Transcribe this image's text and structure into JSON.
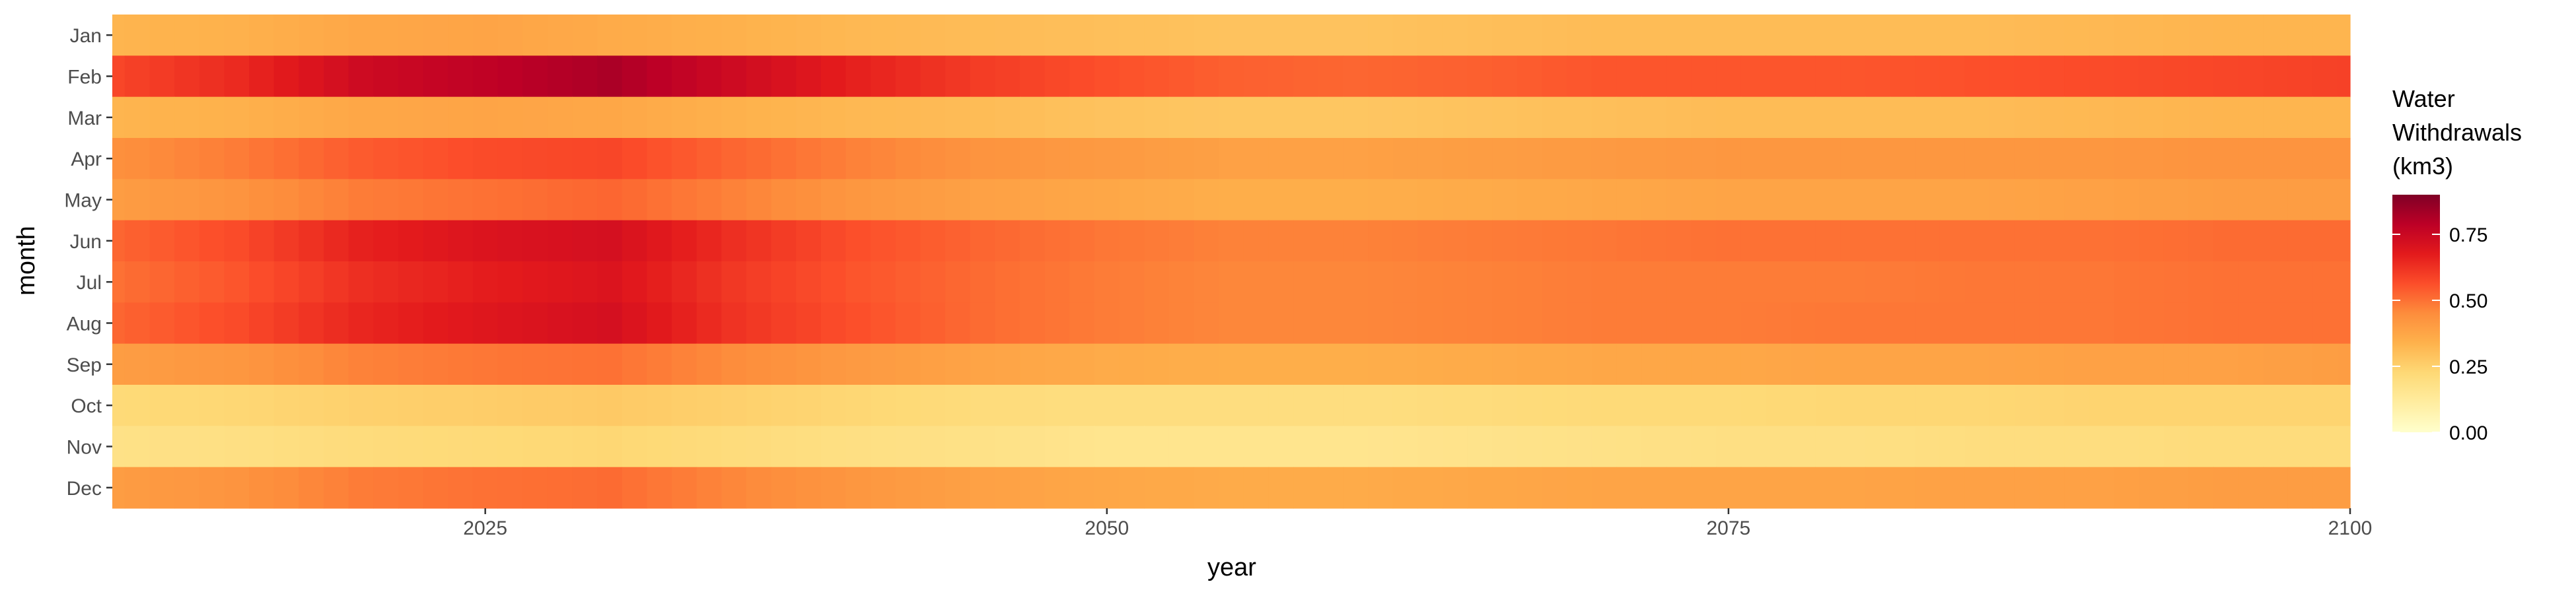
{
  "chart_data": {
    "type": "heatmap",
    "title": "",
    "xlabel": "year",
    "ylabel": "month",
    "x_range": [
      2010,
      2100
    ],
    "x_ticks": [
      "2025",
      "2050",
      "2075",
      "2100"
    ],
    "rows": [
      "Jan",
      "Feb",
      "Mar",
      "Apr",
      "May",
      "Jun",
      "Jul",
      "Aug",
      "Sep",
      "Oct",
      "Nov",
      "Dec"
    ],
    "years": [
      2010,
      2015,
      2020,
      2025,
      2030,
      2035,
      2040,
      2045,
      2050,
      2055,
      2060,
      2065,
      2070,
      2075,
      2080,
      2085,
      2090,
      2095,
      2100
    ],
    "values": [
      [
        0.33,
        0.34,
        0.37,
        0.38,
        0.36,
        0.34,
        0.32,
        0.31,
        0.3,
        0.29,
        0.29,
        0.3,
        0.31,
        0.31,
        0.31,
        0.31,
        0.32,
        0.33,
        0.33
      ],
      [
        0.58,
        0.64,
        0.74,
        0.78,
        0.82,
        0.74,
        0.66,
        0.6,
        0.56,
        0.53,
        0.52,
        0.53,
        0.55,
        0.55,
        0.55,
        0.56,
        0.57,
        0.58,
        0.59
      ],
      [
        0.33,
        0.34,
        0.37,
        0.38,
        0.37,
        0.34,
        0.32,
        0.31,
        0.29,
        0.28,
        0.28,
        0.29,
        0.3,
        0.31,
        0.31,
        0.31,
        0.32,
        0.33,
        0.33
      ],
      [
        0.44,
        0.48,
        0.54,
        0.57,
        0.58,
        0.52,
        0.47,
        0.43,
        0.41,
        0.39,
        0.39,
        0.4,
        0.41,
        0.42,
        0.42,
        0.42,
        0.42,
        0.43,
        0.43
      ],
      [
        0.4,
        0.43,
        0.48,
        0.5,
        0.52,
        0.47,
        0.42,
        0.39,
        0.37,
        0.35,
        0.35,
        0.36,
        0.37,
        0.38,
        0.38,
        0.38,
        0.39,
        0.4,
        0.4
      ],
      [
        0.52,
        0.57,
        0.66,
        0.7,
        0.72,
        0.63,
        0.56,
        0.52,
        0.49,
        0.47,
        0.47,
        0.48,
        0.49,
        0.5,
        0.5,
        0.5,
        0.5,
        0.51,
        0.51
      ],
      [
        0.5,
        0.55,
        0.63,
        0.67,
        0.7,
        0.61,
        0.55,
        0.51,
        0.48,
        0.46,
        0.46,
        0.47,
        0.48,
        0.48,
        0.48,
        0.49,
        0.49,
        0.5,
        0.5
      ],
      [
        0.52,
        0.57,
        0.65,
        0.69,
        0.72,
        0.62,
        0.56,
        0.51,
        0.48,
        0.46,
        0.46,
        0.47,
        0.48,
        0.48,
        0.49,
        0.49,
        0.49,
        0.5,
        0.5
      ],
      [
        0.4,
        0.42,
        0.47,
        0.49,
        0.5,
        0.45,
        0.41,
        0.38,
        0.36,
        0.35,
        0.35,
        0.36,
        0.37,
        0.37,
        0.38,
        0.38,
        0.39,
        0.39,
        0.4
      ],
      [
        0.22,
        0.23,
        0.25,
        0.26,
        0.27,
        0.25,
        0.23,
        0.21,
        0.2,
        0.2,
        0.2,
        0.21,
        0.22,
        0.22,
        0.23,
        0.23,
        0.24,
        0.24,
        0.24
      ],
      [
        0.18,
        0.19,
        0.21,
        0.22,
        0.23,
        0.21,
        0.19,
        0.18,
        0.16,
        0.16,
        0.16,
        0.17,
        0.18,
        0.19,
        0.19,
        0.2,
        0.2,
        0.21,
        0.21
      ],
      [
        0.4,
        0.43,
        0.48,
        0.5,
        0.51,
        0.46,
        0.42,
        0.39,
        0.37,
        0.36,
        0.36,
        0.37,
        0.38,
        0.38,
        0.38,
        0.39,
        0.39,
        0.4,
        0.4
      ]
    ],
    "legend": {
      "title": [
        "Water",
        "Withdrawals",
        "(km3)"
      ],
      "range": [
        0,
        0.9
      ],
      "labels": [
        "0.75",
        "0.50",
        "0.25",
        "0.00"
      ],
      "label_values": [
        0.75,
        0.5,
        0.25,
        0
      ],
      "placement": "right"
    },
    "colors": [
      "#ffffcc",
      "#ffeda0",
      "#fed976",
      "#feb24c",
      "#fd8d3c",
      "#fc4e2a",
      "#e31a1c",
      "#bd0026",
      "#800026"
    ],
    "grid": false
  }
}
